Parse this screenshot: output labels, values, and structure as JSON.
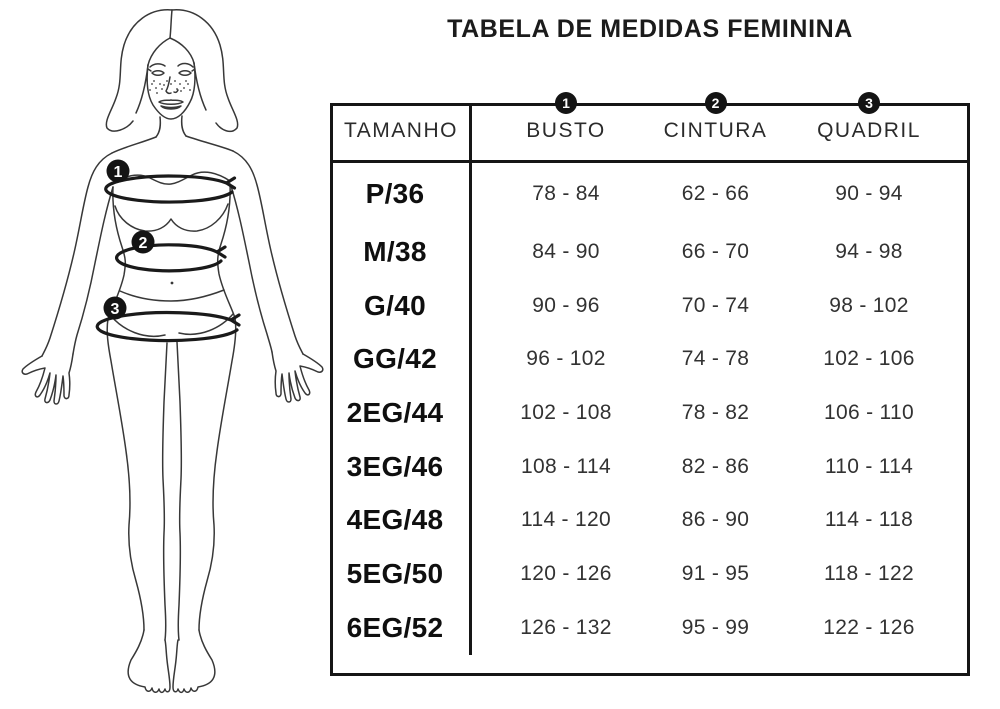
{
  "title": "TABELA DE MEDIDAS FEMININA",
  "figure": {
    "badges": [
      "1",
      "2",
      "3"
    ]
  },
  "table": {
    "corner_header": "TAMANHO",
    "measure_columns": [
      {
        "badge": "1",
        "label": "BUSTO"
      },
      {
        "badge": "2",
        "label": "CINTURA"
      },
      {
        "badge": "3",
        "label": "QUADRIL"
      }
    ],
    "rows": [
      {
        "size": "P/36",
        "values": [
          "78 - 84",
          "62 - 66",
          "90 - 94"
        ]
      },
      {
        "size": "M/38",
        "values": [
          "84 - 90",
          "66 - 70",
          "94 - 98"
        ]
      },
      {
        "size": "G/40",
        "values": [
          "90 - 96",
          "70 - 74",
          "98 - 102"
        ]
      },
      {
        "size": "GG/42",
        "values": [
          "96 - 102",
          "74 - 78",
          "102 - 106"
        ]
      },
      {
        "size": "2EG/44",
        "values": [
          "102 - 108",
          "78 - 82",
          "106 - 110"
        ]
      },
      {
        "size": "3EG/46",
        "values": [
          "108 - 114",
          "82 - 86",
          "110 - 114"
        ]
      },
      {
        "size": "4EG/48",
        "values": [
          "114 - 120",
          "86 - 90",
          "114 - 118"
        ]
      },
      {
        "size": "5EG/50",
        "values": [
          "120 - 126",
          "91 - 95",
          "118 - 122"
        ]
      },
      {
        "size": "6EG/52",
        "values": [
          "126 - 132",
          "95 - 99",
          "122 - 126"
        ]
      }
    ]
  },
  "colors": {
    "background": "#ffffff",
    "table_border": "#161616",
    "line_art": "#383838",
    "ring": "#1a1a1a",
    "badge_bg": "#141414",
    "badge_text": "#ffffff"
  }
}
